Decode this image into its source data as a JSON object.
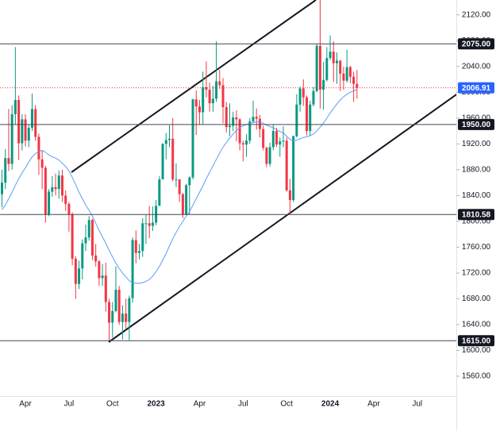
{
  "chart_data": {
    "type": "candlestick",
    "categories": [
      null,
      null,
      null,
      null,
      null,
      null,
      null,
      "Apr",
      null,
      null,
      null,
      null,
      null,
      null,
      null,
      null,
      null,
      null,
      null,
      null,
      "Jul",
      null,
      null,
      null,
      null,
      null,
      null,
      null,
      null,
      null,
      null,
      null,
      null,
      "Oct",
      null,
      null,
      null,
      null,
      null,
      null,
      null,
      null,
      null,
      null,
      null,
      null,
      "2023",
      null,
      null,
      null,
      null,
      null,
      null,
      null,
      null,
      null,
      null,
      null,
      null,
      "Apr",
      null,
      null,
      null,
      null,
      null,
      null,
      null,
      null,
      null,
      null,
      null,
      null,
      "Jul",
      null,
      null,
      null,
      null,
      null,
      null,
      null,
      null,
      null,
      null,
      null,
      null,
      "Oct",
      null,
      null,
      null,
      null,
      null,
      null,
      null,
      null,
      null,
      null,
      null,
      null,
      "2024",
      null,
      null,
      null,
      null,
      null,
      null,
      null,
      null,
      null,
      null,
      null,
      null,
      "Apr",
      null,
      null,
      null,
      null,
      null,
      null,
      null,
      null,
      null,
      null,
      null,
      null,
      "Jul"
    ],
    "open": [
      1842,
      1860,
      1898,
      1889,
      1966,
      1988,
      1921,
      1958,
      1925,
      1945,
      1974,
      1931,
      1896,
      1883,
      1811,
      1846,
      1853,
      1850,
      1871,
      1840,
      1827,
      1811,
      1742,
      1703,
      1727,
      1766,
      1775,
      1802,
      1747,
      1738,
      1712,
      1716,
      1675,
      1643,
      1661,
      1694,
      1644,
      1657,
      1644,
      1681,
      1771,
      1751,
      1754,
      1797,
      1797,
      1793,
      1798,
      1824,
      1865,
      1920,
      1926,
      1928,
      1865,
      1865,
      1842,
      1811,
      1856,
      1868,
      1989,
      1978,
      1969,
      2008,
      2004,
      1983,
      1990,
      2017,
      2011,
      1977,
      1946,
      1948,
      1961,
      1958,
      1921,
      1919,
      1925,
      1955,
      1962,
      1959,
      1943,
      1914,
      1889,
      1915,
      1940,
      1919,
      1924,
      1925,
      1848,
      1833,
      1932,
      1981,
      2006,
      1992,
      1940,
      1981,
      2002,
      2072,
      2004,
      2019,
      2053,
      2063,
      2045,
      2049,
      2029,
      2018,
      2039,
      2024,
      2013,
      null,
      null,
      null,
      null,
      null,
      null,
      null,
      null,
      null,
      null,
      null,
      null,
      null,
      null,
      null,
      null,
      null,
      null
    ],
    "high": [
      1880,
      1912,
      1974,
      1980,
      2070,
      1995,
      1966,
      1966,
      1950,
      1998,
      1980,
      1936,
      1910,
      1886,
      1850,
      1870,
      1874,
      1879,
      1880,
      1848,
      1830,
      1814,
      1746,
      1739,
      1772,
      1795,
      1808,
      1804,
      1765,
      1740,
      1734,
      1736,
      1680,
      1675,
      1730,
      1700,
      1670,
      1680,
      1685,
      1775,
      1786,
      1765,
      1805,
      1810,
      1824,
      1823,
      1833,
      1870,
      1921,
      1937,
      1949,
      1960,
      1890,
      1865,
      1844,
      1858,
      1870,
      1990,
      2003,
      1988,
      2032,
      2048,
      2015,
      2010,
      2079,
      2035,
      2022,
      1985,
      1983,
      1970,
      1972,
      1960,
      1925,
      1935,
      1960,
      1987,
      1975,
      1965,
      1948,
      1916,
      1922,
      1950,
      1945,
      1930,
      1947,
      1930,
      1866,
      1933,
      1997,
      2009,
      2020,
      1995,
      1987,
      2008,
      2075,
      2143,
      2047,
      2070,
      2088,
      2079,
      2062,
      2050,
      2040,
      2066,
      2041,
      2032,
      2035,
      null,
      null,
      null,
      null,
      null,
      null,
      null,
      null,
      null,
      null,
      null,
      null,
      null,
      null,
      null,
      null,
      null,
      null
    ],
    "low": [
      1822,
      1850,
      1878,
      1880,
      1950,
      1895,
      1910,
      1916,
      1915,
      1940,
      1925,
      1872,
      1850,
      1798,
      1808,
      1838,
      1840,
      1835,
      1830,
      1816,
      1784,
      1732,
      1680,
      1695,
      1710,
      1754,
      1770,
      1740,
      1730,
      1700,
      1700,
      1660,
      1615,
      1620,
      1659,
      1640,
      1617,
      1634,
      1616,
      1674,
      1735,
      1741,
      1745,
      1765,
      1774,
      1785,
      1794,
      1824,
      1865,
      1896,
      1915,
      1862,
      1853,
      1830,
      1805,
      1810,
      1810,
      1865,
      1934,
      1950,
      1950,
      1992,
      1970,
      1970,
      1985,
      2005,
      1952,
      1938,
      1932,
      1940,
      1924,
      1910,
      1893,
      1900,
      1920,
      1952,
      1942,
      1930,
      1910,
      1884,
      1885,
      1910,
      1915,
      1900,
      1915,
      1846,
      1810,
      1830,
      1930,
      1970,
      1979,
      1933,
      1932,
      1978,
      2000,
      1975,
      1973,
      2017,
      2050,
      2016,
      2013,
      2002,
      2004,
      2015,
      2014,
      1985,
      1990,
      null,
      null,
      null,
      null,
      null,
      null,
      null,
      null,
      null,
      null,
      null,
      null,
      null,
      null,
      null,
      null,
      null,
      null
    ],
    "close": [
      1860,
      1898,
      1889,
      1966,
      1988,
      1921,
      1958,
      1925,
      1945,
      1974,
      1931,
      1896,
      1883,
      1811,
      1846,
      1853,
      1850,
      1871,
      1840,
      1827,
      1811,
      1742,
      1703,
      1727,
      1766,
      1775,
      1802,
      1747,
      1738,
      1712,
      1716,
      1675,
      1643,
      1661,
      1694,
      1644,
      1657,
      1644,
      1681,
      1771,
      1751,
      1754,
      1797,
      1797,
      1793,
      1798,
      1824,
      1865,
      1920,
      1926,
      1928,
      1865,
      1865,
      1842,
      1811,
      1856,
      1868,
      1989,
      1978,
      1969,
      2008,
      2004,
      1983,
      1990,
      2017,
      2011,
      1977,
      1946,
      1948,
      1961,
      1958,
      1921,
      1919,
      1925,
      1955,
      1962,
      1959,
      1943,
      1914,
      1889,
      1915,
      1940,
      1919,
      1924,
      1925,
      1848,
      1833,
      1932,
      1981,
      2006,
      1992,
      1940,
      1981,
      2002,
      2072,
      2004,
      2019,
      2053,
      2063,
      2045,
      2049,
      2029,
      2018,
      2039,
      2024,
      2013,
      2006.91,
      null,
      null,
      null,
      null,
      null,
      null,
      null,
      null,
      null,
      null,
      null,
      null,
      null,
      null,
      null,
      null,
      null,
      null
    ],
    "up_color": "#089981",
    "down_color": "#f23645",
    "ma": {
      "color": "#5b9cf6",
      "values": [
        1818,
        1825,
        1835,
        1845,
        1856,
        1866,
        1875,
        1883,
        1892,
        1900,
        1905,
        1908,
        1910,
        1907,
        1903,
        1900,
        1898,
        1895,
        1890,
        1885,
        1878,
        1868,
        1857,
        1845,
        1835,
        1825,
        1817,
        1808,
        1797,
        1786,
        1776,
        1766,
        1755,
        1745,
        1735,
        1727,
        1720,
        1714,
        1708,
        1705,
        1704,
        1704,
        1705,
        1707,
        1710,
        1715,
        1722,
        1730,
        1740,
        1750,
        1762,
        1773,
        1783,
        1792,
        1800,
        1808,
        1815,
        1825,
        1835,
        1845,
        1855,
        1866,
        1876,
        1886,
        1896,
        1906,
        1915,
        1922,
        1929,
        1935,
        1941,
        1945,
        1948,
        1950,
        1952,
        1953,
        1954,
        1954,
        1952,
        1949,
        1947,
        1945,
        1942,
        1939,
        1937,
        1932,
        1927,
        1925,
        1926,
        1928,
        1930,
        1931,
        1933,
        1935,
        1940,
        1946,
        1952,
        1960,
        1968,
        1975,
        1982,
        1988,
        1993,
        1997,
        2000,
        2002,
        2004,
        null,
        null,
        null,
        null,
        null,
        null,
        null,
        null,
        null,
        null,
        null,
        null,
        null,
        null,
        null,
        null,
        null,
        null
      ]
    },
    "ylim": [
      1528,
      2143
    ],
    "yticks": [
      {
        "value": 1560,
        "label": "1560.00"
      },
      {
        "value": 1600,
        "label": "1600.00"
      },
      {
        "value": 1640,
        "label": "1640.00"
      },
      {
        "value": 1680,
        "label": "1680.00"
      },
      {
        "value": 1720,
        "label": "1720.00"
      },
      {
        "value": 1760,
        "label": "1760.00"
      },
      {
        "value": 1800,
        "label": "1800.00"
      },
      {
        "value": 1840,
        "label": "1840.00"
      },
      {
        "value": 1880,
        "label": "1880.00"
      },
      {
        "value": 1920,
        "label": "1920.00"
      },
      {
        "value": 1960,
        "label": "1960.00"
      },
      {
        "value": 2000,
        "label": "2000.00"
      },
      {
        "value": 2040,
        "label": "2040.00"
      },
      {
        "value": 2080,
        "label": "2080.00"
      },
      {
        "value": 2120,
        "label": "2120.00"
      }
    ],
    "levels": [
      {
        "value": 2075,
        "label": "2075.00"
      },
      {
        "value": 1950,
        "label": "1950.00"
      },
      1810.58,
      {
        "value": 1615,
        "label": "1615.00"
      }
    ],
    "level_color": "#434651",
    "last_price": 2006.91,
    "last_price_color": "#2962ff",
    "grid": false
  }
}
